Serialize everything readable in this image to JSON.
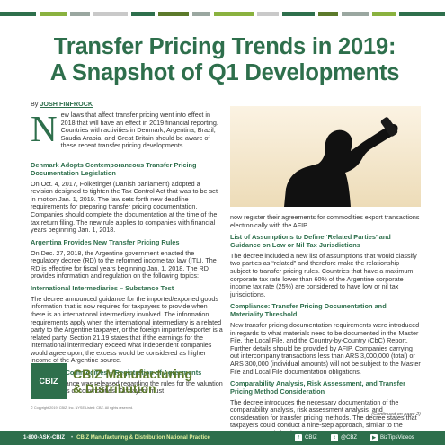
{
  "header": {
    "title_line1": "Transfer Pricing Trends in 2019:",
    "title_line2": "A Snapshot of Q1 Developments",
    "accent_colors": [
      "#2e6f4c",
      "#8ab23f",
      "#9aa7a0",
      "#c9c9c9",
      "#5c7a2b"
    ]
  },
  "byline": {
    "prefix": "By",
    "author": "JOSH FINFROCK"
  },
  "left_column": {
    "dropcap": "N",
    "intro": "ew laws that affect transfer pricing went into effect in 2018 that will have an effect in 2019 financial reporting. Countries with activities in Denmark, Argentina, Brazil, Saudia Arabia, and Great  Britain should be aware of these recent transfer pricing developments.",
    "s1_heading": "Denmark Adopts Contemporaneous Transfer Pricing Documentation Legislation",
    "s1_text": "On Oct. 4, 2017, Folketinget (Danish parliament) adopted a revision designed to tighten the Tax Control Act that was to be set in motion Jan. 1, 2019. The law sets forth new deadline requirements for preparing transfer pricing documentation. Companies should complete the documentation at the time of the tax return filing. The new rule applies to companies with financial years beginning Jan. 1, 2018.",
    "s2_heading": "Argentina Provides New Transfer Pricing Rules",
    "s2_text": "On Dec. 27, 2018, the Argentine government enacted the regulatory decree (RD) to the reformed income tax law (ITL). The RD is effective for fiscal years beginning Jan. 1, 2018. The RD provides information and regulation on the following topics:",
    "s3_heading": "International Intermediaries – Substance Test",
    "s3_text": "The decree announced guidance for the imported/exported goods information that is now required for taxpayers to provide when there is an international intermediary involved. The information requirements apply when the international intermediary is a related party to the Argentine taxpayer, or the foreign importer/exporter is a related party. Section 21.19 states that if the earnings for the international intermediary exceed what independent companies would agree upon, the excess would be considered as higher income of the Argentine source.",
    "s4_heading": "Exports of Commodities – Registration of Agreements",
    "s4_text": "Further guidance was released regarding the rules for the valuation of the exports of commodities. Taxpayers must"
  },
  "right_column": {
    "continuation": "now register their agreements for commodities export transactions electronically with the AFIP.",
    "s5_heading": "List of Assumptions to Define ‘Related Parties’ and Guidance on Low or Nil Tax Jurisdictions",
    "s5_text": "The decree included a new list of assumptions that would classify two parties as “related” and therefore make the relationship subject to transfer pricing rules. Countries that have a maximum corporate tax rate lower than 60% of the Argentine corporate income tax rate (25%) are considered to have low or nil tax jurisdictions.",
    "s6_heading": "Compliance: Transfer Pricing Documentation and Materiality Threshold",
    "s6_text": "New transfer pricing documentation requirements were introduced in regards to what materials need to be documented in the Master File, the Local File, and the Country-by-Country (CbC) Report. Further details should be provided by AFIP. Companies carrying out intercompany transactions less than ARS 3,000,000 (total) or ARS 300,000 (individual amounts) will not be subject to the Master File and Local File documentation obligations.",
    "s7_heading": "Comparability Analysis, Risk Assessment, and Transfer Pricing Method Consideration",
    "s7_text": "The decree introduces the necessary documentation of the comparability analysis, risk assessment analysis, and consideration for transfer pricing methods. The decree states that taxpayers could conduct a nine-step approach, similar to the OECD approach for the",
    "continued_note": "(Continued on page 2)"
  },
  "brand": {
    "badge": "CBIZ",
    "line1": "CBIZ Manufacturing",
    "line2": "& Distribution",
    "copyright": "© Copyright 2019. CBIZ, Inc. NYSE Listed: CBZ. All rights reserved."
  },
  "footer": {
    "phone": "1-800-ASK-CBIZ",
    "separator": "•",
    "link": "CBIZ Manufacturing & Distribution National Practice",
    "social1": "CBIZ",
    "social2": "@CBZ",
    "social3": "BizTipsVideos"
  }
}
